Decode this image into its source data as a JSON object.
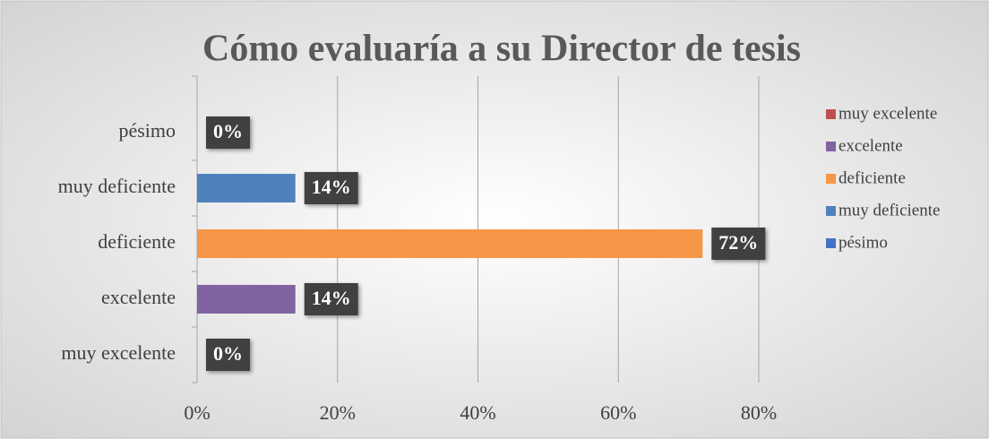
{
  "chart_data": {
    "type": "bar",
    "orientation": "horizontal",
    "title": "Cómo evaluaría a su Director de tesis",
    "categories": [
      "pésimo",
      "muy deficiente",
      "deficiente",
      "excelente",
      "muy excelente"
    ],
    "values": [
      0,
      14,
      72,
      14,
      0
    ],
    "value_labels": [
      "0%",
      "14%",
      "72%",
      "14%",
      "0%"
    ],
    "colors": [
      "#4472c4",
      "#4f81bd",
      "#f79646",
      "#8064a2",
      "#c0504d"
    ],
    "xlim": [
      0,
      80
    ],
    "xticks": [
      {
        "value": 0,
        "label": "0%"
      },
      {
        "value": 20,
        "label": "20%"
      },
      {
        "value": 40,
        "label": "40%"
      },
      {
        "value": 60,
        "label": "60%"
      },
      {
        "value": 80,
        "label": "80%"
      }
    ],
    "grid": true,
    "legend": "right"
  }
}
